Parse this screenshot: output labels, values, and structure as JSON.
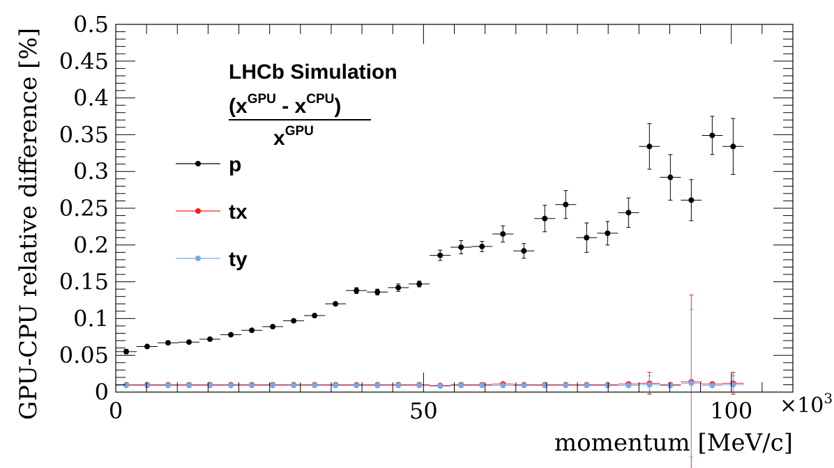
{
  "chart_data": {
    "type": "scatter",
    "title": "LHCb Simulation",
    "annotation": {
      "numerator": "(x^GPU - x^CPU)",
      "denominator": "x^GPU",
      "num_a": "(x",
      "num_sup_a": "GPU",
      "num_mid": " - x",
      "num_sup_b": "CPU",
      "num_end": ")",
      "den_base": "x",
      "den_sup": "GPU"
    },
    "xlabel": "momentum [MeV/c]",
    "ylabel": "GPU-CPU relative difference [%]",
    "x_multiplier": {
      "base": "×10",
      "exp": "3"
    },
    "xlim": [
      0,
      110000
    ],
    "ylim": [
      0,
      0.5
    ],
    "xticks": [
      0,
      50000,
      100000
    ],
    "xtick_labels": [
      "0",
      "50",
      "100"
    ],
    "yticks": [
      0,
      0.05,
      0.1,
      0.15,
      0.2,
      0.25,
      0.3,
      0.35,
      0.4,
      0.45,
      0.5
    ],
    "ytick_labels": [
      "0",
      "0.05",
      "0.1",
      "0.15",
      "0.2",
      "0.25",
      "0.3",
      "0.35",
      "0.4",
      "0.45",
      "0.5"
    ],
    "bin_half_width": 1700,
    "legend_position": "top-left",
    "series": [
      {
        "name": "p",
        "color": "#000000",
        "x": [
          1700,
          5100,
          8500,
          11900,
          15300,
          18700,
          22100,
          25500,
          28900,
          32300,
          35700,
          39100,
          42500,
          45900,
          49300,
          52700,
          56100,
          59500,
          62900,
          66300,
          69700,
          73100,
          76500,
          79900,
          83300,
          86700,
          90100,
          93500,
          96900,
          100300
        ],
        "y": [
          0.055,
          0.062,
          0.067,
          0.068,
          0.072,
          0.078,
          0.084,
          0.089,
          0.097,
          0.104,
          0.12,
          0.138,
          0.136,
          0.142,
          0.147,
          0.186,
          0.197,
          0.198,
          0.215,
          0.192,
          0.236,
          0.255,
          0.21,
          0.216,
          0.244,
          0.334,
          0.292,
          0.261,
          0.349,
          0.334
        ],
        "yerr": [
          0.003,
          0.002,
          0.002,
          0.002,
          0.002,
          0.002,
          0.002,
          0.002,
          0.002,
          0.002,
          0.002,
          0.004,
          0.004,
          0.005,
          0.004,
          0.007,
          0.009,
          0.007,
          0.011,
          0.01,
          0.018,
          0.019,
          0.02,
          0.016,
          0.02,
          0.031,
          0.031,
          0.028,
          0.026,
          0.038
        ]
      },
      {
        "name": "tx",
        "color": "#ff1a1a",
        "x": [
          1700,
          5100,
          8500,
          11900,
          15300,
          18700,
          22100,
          25500,
          28900,
          32300,
          35700,
          39100,
          42500,
          45900,
          49300,
          52700,
          56100,
          59500,
          62900,
          66300,
          69700,
          73100,
          76500,
          79900,
          83300,
          86700,
          90100,
          93500,
          96900,
          100300
        ],
        "y": [
          0.01,
          0.01,
          0.01,
          0.01,
          0.01,
          0.01,
          0.01,
          0.01,
          0.01,
          0.01,
          0.01,
          0.01,
          0.01,
          0.01,
          0.01,
          0.009,
          0.01,
          0.01,
          0.011,
          0.01,
          0.01,
          0.01,
          0.01,
          0.01,
          0.011,
          0.012,
          0.01,
          0.014,
          0.011,
          0.012
        ],
        "yerr": [
          0,
          0,
          0,
          0,
          0,
          0,
          0,
          0,
          0,
          0,
          0,
          0,
          0,
          0,
          0,
          0,
          0,
          0,
          0,
          0,
          0,
          0,
          0,
          0,
          0,
          0.015,
          0,
          0.118,
          0,
          0.015
        ]
      },
      {
        "name": "ty",
        "color": "#7aa7ea",
        "x": [
          1700,
          5100,
          8500,
          11900,
          15300,
          18700,
          22100,
          25500,
          28900,
          32300,
          35700,
          39100,
          42500,
          45900,
          49300,
          52700,
          56100,
          59500,
          62900,
          66300,
          69700,
          73100,
          76500,
          79900,
          83300,
          86700,
          90100,
          93500,
          96900,
          100300
        ],
        "y": [
          0.009,
          0.009,
          0.009,
          0.009,
          0.009,
          0.009,
          0.009,
          0.009,
          0.009,
          0.009,
          0.009,
          0.009,
          0.009,
          0.009,
          0.009,
          0.008,
          0.009,
          0.009,
          0.009,
          0.009,
          0.009,
          0.009,
          0.009,
          0.009,
          0.009,
          0.01,
          0.009,
          0.012,
          0.009,
          0.01
        ],
        "yerr": [
          0,
          0,
          0,
          0,
          0,
          0,
          0,
          0,
          0,
          0,
          0,
          0,
          0,
          0,
          0,
          0,
          0,
          0,
          0,
          0,
          0,
          0,
          0,
          0,
          0,
          0.012,
          0,
          0.1,
          0,
          0.012
        ]
      }
    ]
  }
}
